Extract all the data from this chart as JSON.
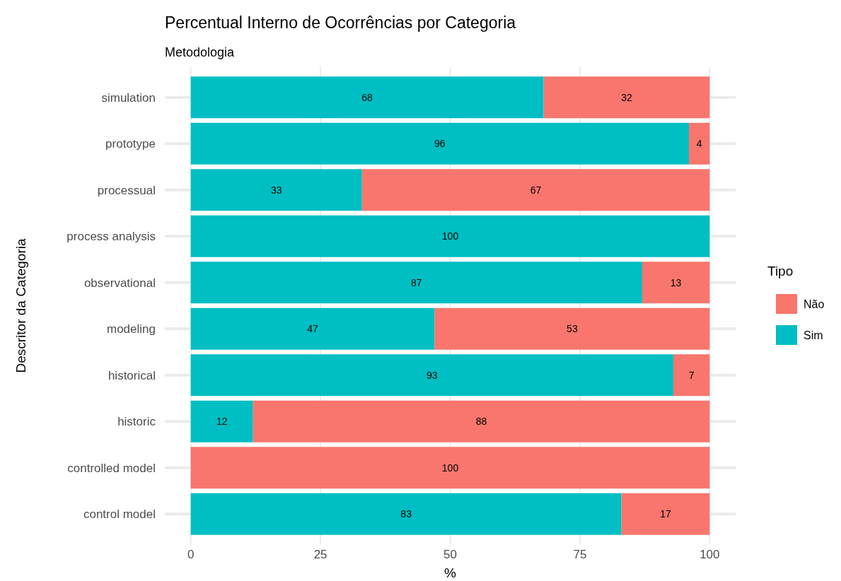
{
  "chart_data": {
    "type": "bar",
    "orientation": "horizontal",
    "stacked": true,
    "title": "Percentual Interno de Ocorrências por Categoria",
    "subtitle": "Metodologia",
    "xlabel": "%",
    "ylabel": "Descritor da Categoria",
    "legend_title": "Tipo",
    "legend": "right",
    "grid": true,
    "categories": [
      "simulation",
      "prototype",
      "processual",
      "process analysis",
      "observational",
      "modeling",
      "historical",
      "historic",
      "controlled model",
      "control model"
    ],
    "series": [
      {
        "name": "Sim",
        "color": "#00bfc4",
        "values": [
          68,
          96,
          33,
          100,
          87,
          47,
          93,
          12,
          0,
          83
        ],
        "value_labels": [
          "68",
          "96",
          "33",
          "100",
          "87",
          "47",
          "93",
          "12",
          null,
          "83"
        ]
      },
      {
        "name": "Não",
        "color": "#f8766d",
        "values": [
          32,
          4,
          67,
          0,
          13,
          53,
          7,
          88,
          100,
          17
        ],
        "value_labels": [
          "32",
          "4",
          "67",
          null,
          "13",
          "53",
          "7",
          "88",
          "100",
          "17"
        ]
      }
    ],
    "xlim": [
      -5,
      105
    ],
    "xticks": [
      0,
      25,
      50,
      75,
      100
    ]
  }
}
